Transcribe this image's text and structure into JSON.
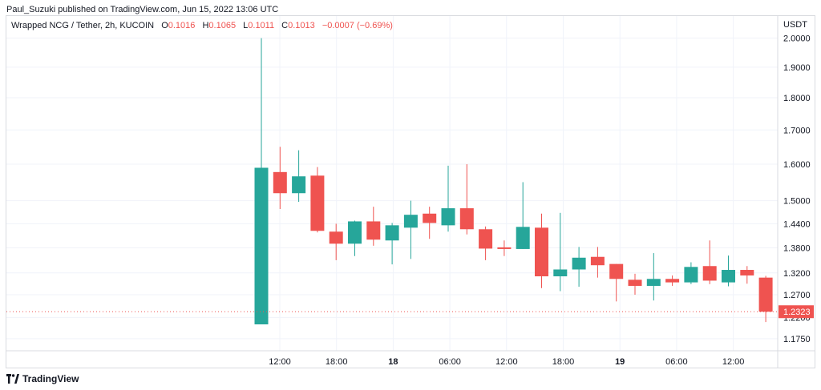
{
  "header": {
    "publisher": "Paul_Suzuki published on TradingView.com, Jun 15, 2022 13:06 UTC"
  },
  "legend": {
    "symbol": "Wrapped NCG / Tether, 2h, KUCOIN",
    "o_label": "O",
    "o_value": "0.1016",
    "h_label": "H",
    "h_value": "0.1065",
    "l_label": "L",
    "l_value": "0.1011",
    "c_label": "C",
    "c_value": "0.1013",
    "change": "−0.0007 (−0.69%)"
  },
  "footer": {
    "brand": "TradingView"
  },
  "colors": {
    "up": "#26a69a",
    "down": "#ef5350",
    "grid": "#f0f3fa",
    "border": "#d9dbe0"
  },
  "chart_data": {
    "type": "candlestick",
    "scale": "log",
    "y_unit": "USDT",
    "ylim": [
      1.15,
      2.08
    ],
    "price_ticks": [
      "2.0000",
      "1.9000",
      "1.8000",
      "1.7000",
      "1.6000",
      "1.5000",
      "1.4400",
      "1.3800",
      "1.3200",
      "1.2700",
      "1.2200",
      "1.1750"
    ],
    "time_ticks": [
      {
        "label": "12:00",
        "bold": false
      },
      {
        "label": "18:00",
        "bold": false
      },
      {
        "label": "18",
        "bold": true
      },
      {
        "label": "06:00",
        "bold": false
      },
      {
        "label": "12:00",
        "bold": false
      },
      {
        "label": "18:00",
        "bold": false
      },
      {
        "label": "19",
        "bold": true
      },
      {
        "label": "06:00",
        "bold": false
      },
      {
        "label": "12:00",
        "bold": false
      }
    ],
    "candles": [
      {
        "o": 1.205,
        "h": 2.0,
        "l": 1.205,
        "c": 1.59
      },
      {
        "o": 1.578,
        "h": 1.65,
        "l": 1.478,
        "c": 1.52
      },
      {
        "o": 1.52,
        "h": 1.64,
        "l": 1.497,
        "c": 1.566
      },
      {
        "o": 1.568,
        "h": 1.592,
        "l": 1.418,
        "c": 1.422
      },
      {
        "o": 1.42,
        "h": 1.44,
        "l": 1.35,
        "c": 1.39
      },
      {
        "o": 1.39,
        "h": 1.448,
        "l": 1.36,
        "c": 1.446
      },
      {
        "o": 1.446,
        "h": 1.484,
        "l": 1.385,
        "c": 1.4
      },
      {
        "o": 1.398,
        "h": 1.442,
        "l": 1.34,
        "c": 1.436
      },
      {
        "o": 1.43,
        "h": 1.5,
        "l": 1.353,
        "c": 1.463
      },
      {
        "o": 1.466,
        "h": 1.484,
        "l": 1.402,
        "c": 1.442
      },
      {
        "o": 1.436,
        "h": 1.596,
        "l": 1.42,
        "c": 1.48
      },
      {
        "o": 1.48,
        "h": 1.6,
        "l": 1.413,
        "c": 1.426
      },
      {
        "o": 1.426,
        "h": 1.433,
        "l": 1.35,
        "c": 1.378
      },
      {
        "o": 1.381,
        "h": 1.398,
        "l": 1.36,
        "c": 1.377
      },
      {
        "o": 1.377,
        "h": 1.55,
        "l": 1.377,
        "c": 1.432
      },
      {
        "o": 1.43,
        "h": 1.466,
        "l": 1.285,
        "c": 1.312
      },
      {
        "o": 1.312,
        "h": 1.468,
        "l": 1.278,
        "c": 1.328
      },
      {
        "o": 1.328,
        "h": 1.382,
        "l": 1.288,
        "c": 1.356
      },
      {
        "o": 1.358,
        "h": 1.382,
        "l": 1.309,
        "c": 1.338
      },
      {
        "o": 1.341,
        "h": 1.341,
        "l": 1.255,
        "c": 1.306
      },
      {
        "o": 1.304,
        "h": 1.318,
        "l": 1.27,
        "c": 1.29
      },
      {
        "o": 1.29,
        "h": 1.367,
        "l": 1.257,
        "c": 1.306
      },
      {
        "o": 1.306,
        "h": 1.314,
        "l": 1.29,
        "c": 1.298
      },
      {
        "o": 1.298,
        "h": 1.345,
        "l": 1.294,
        "c": 1.334
      },
      {
        "o": 1.336,
        "h": 1.398,
        "l": 1.294,
        "c": 1.302
      },
      {
        "o": 1.298,
        "h": 1.361,
        "l": 1.289,
        "c": 1.327
      },
      {
        "o": 1.327,
        "h": 1.336,
        "l": 1.295,
        "c": 1.314
      },
      {
        "o": 1.309,
        "h": 1.313,
        "l": 1.21,
        "c": 1.2323
      }
    ],
    "last_price": "1.2323"
  }
}
